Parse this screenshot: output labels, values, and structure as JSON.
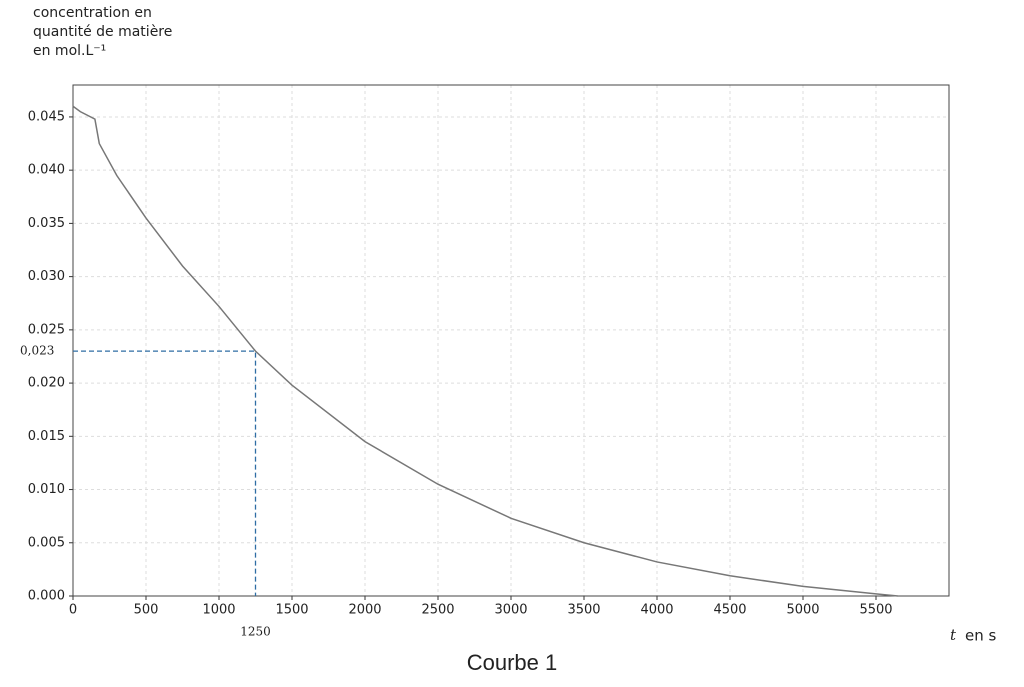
{
  "chart_data": {
    "type": "line",
    "y_label_lines": [
      "concentration en",
      "quantité de matière",
      "en mol.L⁻¹"
    ],
    "x_label_var": "t",
    "x_label": "en s",
    "caption": "Courbe 1",
    "x": [
      0,
      50,
      150,
      180,
      300,
      500,
      750,
      1000,
      1250,
      1500,
      2000,
      2500,
      3000,
      3500,
      4000,
      4500,
      5000,
      5500,
      5650
    ],
    "series": [
      {
        "color": "#777777",
        "values": [
          0.046,
          0.0455,
          0.0448,
          0.0425,
          0.0395,
          0.0355,
          0.031,
          0.0272,
          0.023,
          0.0198,
          0.0145,
          0.0105,
          0.0073,
          0.005,
          0.0032,
          0.0019,
          0.0009,
          0.0002,
          0
        ]
      }
    ],
    "xlim": [
      0,
      6000
    ],
    "ylim": [
      0,
      0.048
    ],
    "xticks": [
      0,
      500,
      1000,
      1500,
      2000,
      2500,
      3000,
      3500,
      4000,
      4500,
      5000,
      5500
    ],
    "yticks": [
      {
        "value": 0,
        "label": "0.000"
      },
      0.005,
      {
        "value": 0.01,
        "label": "0.010"
      },
      0.015,
      {
        "value": 0.02,
        "label": "0.020"
      },
      0.025,
      {
        "value": 0.03,
        "label": "0.030"
      },
      0.035,
      {
        "value": 0.04,
        "label": "0.040"
      },
      0.045
    ],
    "grid": true,
    "annotation": {
      "x": 1250,
      "y": {
        "value": 0.023,
        "label": "0,023"
      },
      "color": "#2e6da4"
    }
  }
}
